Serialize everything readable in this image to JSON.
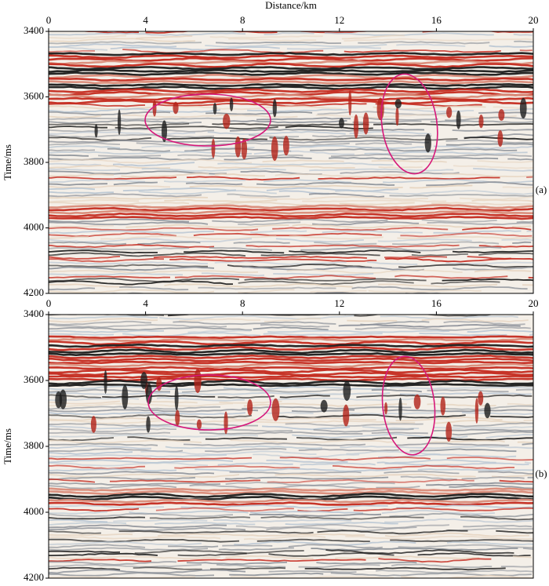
{
  "figure": {
    "x_label": "Distance/km",
    "panels": [
      {
        "label": "(a)",
        "y_label": "Time/ms",
        "xlim": [
          0,
          20
        ],
        "xticks": [
          0,
          4,
          8,
          12,
          16,
          20
        ],
        "ylim": [
          3400,
          4200
        ],
        "yticks": [
          3400,
          3600,
          3800,
          4000,
          4200
        ]
      },
      {
        "label": "(b)",
        "y_label": "Time/ms",
        "xlim": [
          0,
          20
        ],
        "xticks": [
          0,
          4,
          8,
          12,
          16,
          20
        ],
        "ylim": [
          3400,
          4200
        ],
        "yticks": [
          3400,
          3600,
          3800,
          4000,
          4200
        ]
      }
    ]
  }
}
